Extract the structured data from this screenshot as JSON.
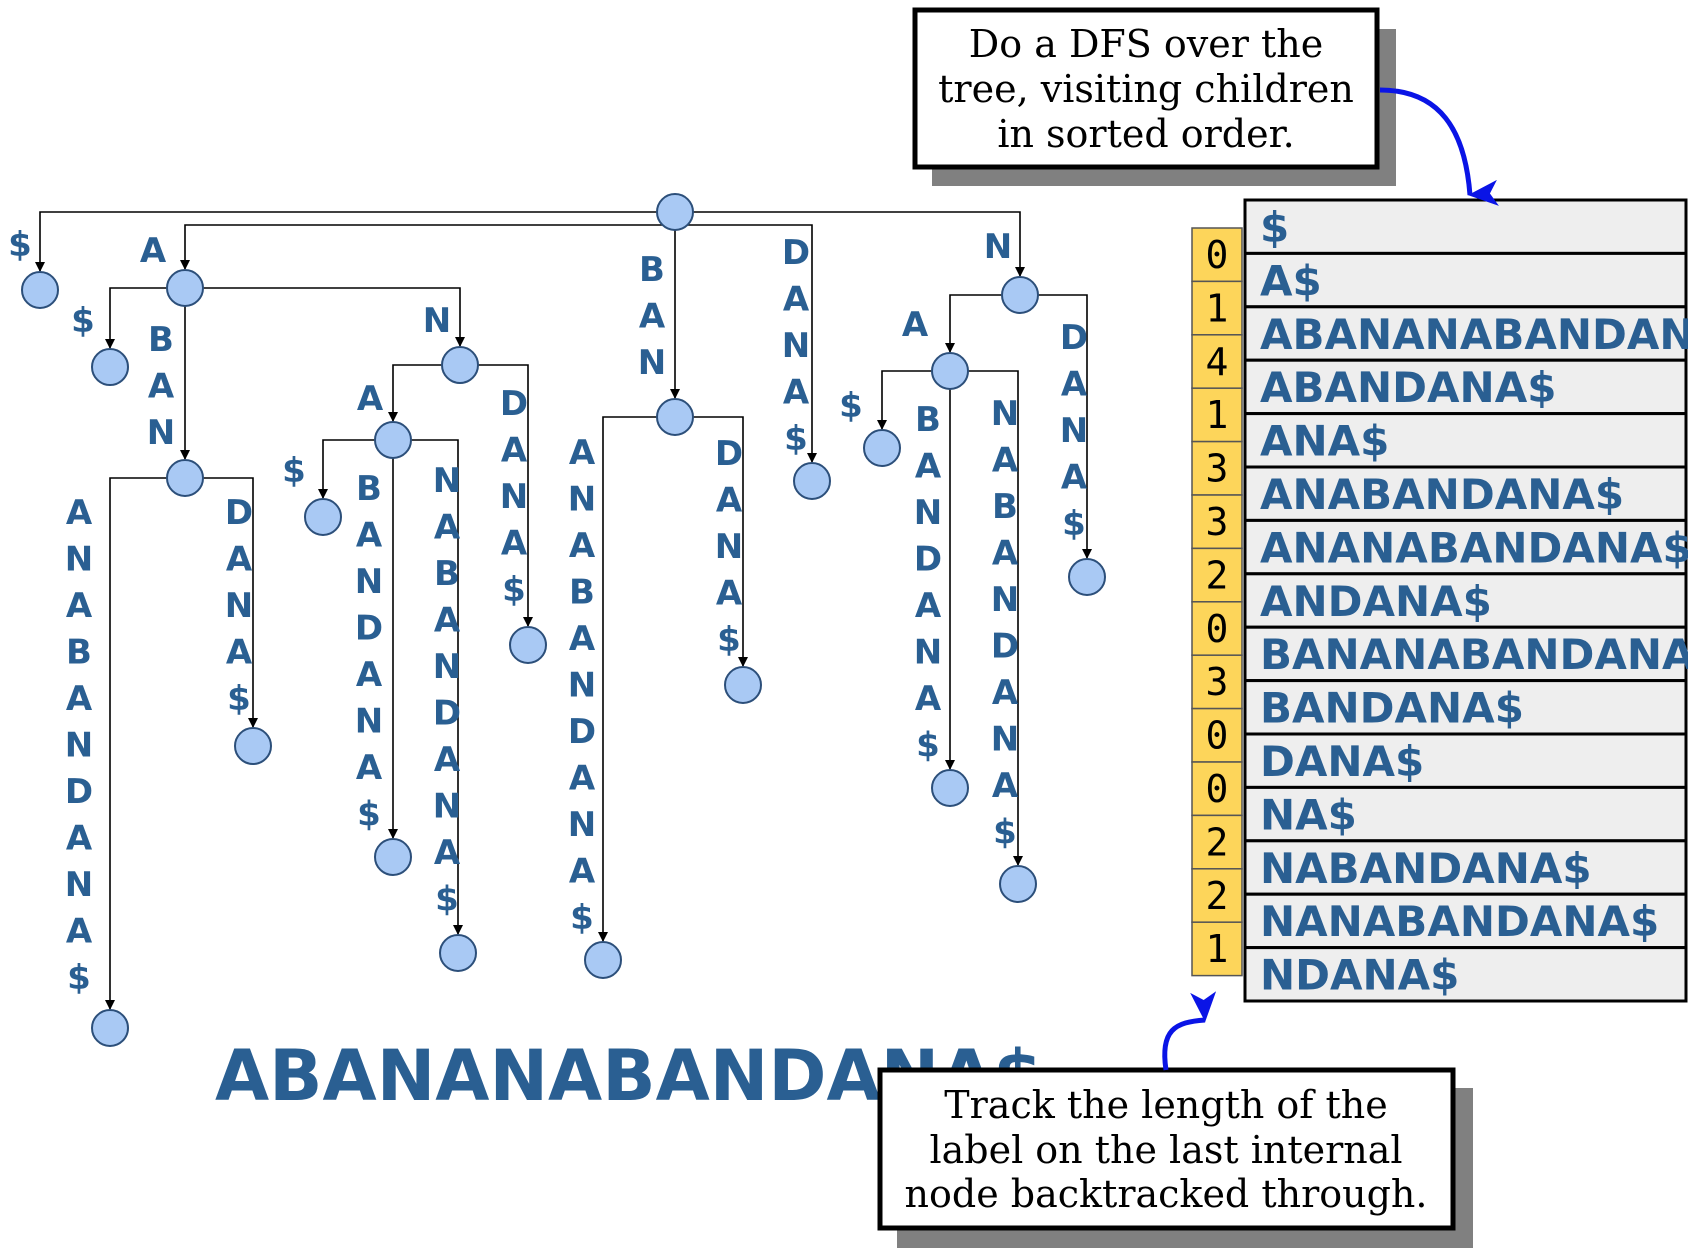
{
  "string": "ABANANABANDANA$",
  "callout_top_lines": [
    "Do a DFS over the",
    "tree, visiting children",
    "in sorted order."
  ],
  "callout_bottom_lines": [
    "Track the length of the",
    "label on the last internal",
    "node backtracked through."
  ],
  "lcp_values": [
    "0",
    "1",
    "4",
    "1",
    "3",
    "3",
    "2",
    "0",
    "3",
    "0",
    "0",
    "2",
    "2",
    "1"
  ],
  "suffixes": [
    "$",
    "A$",
    "ABANANABANDANA$",
    "ABANDANA$",
    "ANA$",
    "ANABANDANA$",
    "ANANABANDANA$",
    "ANDANA$",
    "BANANABANDANA$",
    "BANDANA$",
    "DANA$",
    "NA$",
    "NABANDANA$",
    "NANABANDANA$",
    "NDANA$"
  ],
  "tree": {
    "nodes": [
      "root",
      "A",
      "A-BAN",
      "AN",
      "ANA",
      "BAN",
      "N",
      "NA",
      "leaf-$",
      "leaf-A$",
      "leaf-ABANANABANDANA$",
      "leaf-ABANDANA$",
      "leaf-ANA$",
      "leaf-ANABANDANA$",
      "leaf-ANANABANDANA$",
      "leaf-ANDANA$",
      "leaf-BANANABANDANA$",
      "leaf-BANDANA$",
      "leaf-DANA$",
      "leaf-NA$",
      "leaf-NABANDANA$",
      "leaf-NANABANDANA$",
      "leaf-NDANA$"
    ],
    "edges": [
      {
        "from": "root",
        "to": "leaf-$",
        "label": "$"
      },
      {
        "from": "root",
        "to": "A",
        "label": "A"
      },
      {
        "from": "root",
        "to": "BAN",
        "label": "BAN"
      },
      {
        "from": "root",
        "to": "leaf-DANA$",
        "label": "DANA$"
      },
      {
        "from": "root",
        "to": "N",
        "label": "N"
      },
      {
        "from": "A",
        "to": "leaf-A$",
        "label": "$"
      },
      {
        "from": "A",
        "to": "A-BAN",
        "label": "BAN"
      },
      {
        "from": "A",
        "to": "AN",
        "label": "N"
      },
      {
        "from": "A-BAN",
        "to": "leaf-ABANANABANDANA$",
        "label": "ANABANDANA$"
      },
      {
        "from": "A-BAN",
        "to": "leaf-ABANDANA$",
        "label": "DANA$"
      },
      {
        "from": "AN",
        "to": "ANA",
        "label": "A"
      },
      {
        "from": "AN",
        "to": "leaf-ANDANA$",
        "label": "DANA$"
      },
      {
        "from": "ANA",
        "to": "leaf-ANA$",
        "label": "$"
      },
      {
        "from": "ANA",
        "to": "leaf-ANABANDANA$",
        "label": "BANDANA$"
      },
      {
        "from": "ANA",
        "to": "leaf-ANANABANDANA$",
        "label": "NABANDANA$"
      },
      {
        "from": "BAN",
        "to": "leaf-BANANABANDANA$",
        "label": "ANABANDANA$"
      },
      {
        "from": "BAN",
        "to": "leaf-BANDANA$",
        "label": "DANA$"
      },
      {
        "from": "N",
        "to": "NA",
        "label": "A"
      },
      {
        "from": "N",
        "to": "leaf-NDANA$",
        "label": "DANA$"
      },
      {
        "from": "NA",
        "to": "leaf-NA$",
        "label": "$"
      },
      {
        "from": "NA",
        "to": "leaf-NABANDANA$",
        "label": "BANDANA$"
      },
      {
        "from": "NA",
        "to": "leaf-NANABANDANA$",
        "label": "NABANDANA$"
      }
    ]
  },
  "colors": {
    "node_fill": "#a9c9f4",
    "label_blue": "#2a5f92",
    "lcp_fill": "#fdd55a",
    "suffix_fill": "#eeeeee",
    "arrow_blue": "#0a14e6",
    "shadow": "#808080"
  }
}
